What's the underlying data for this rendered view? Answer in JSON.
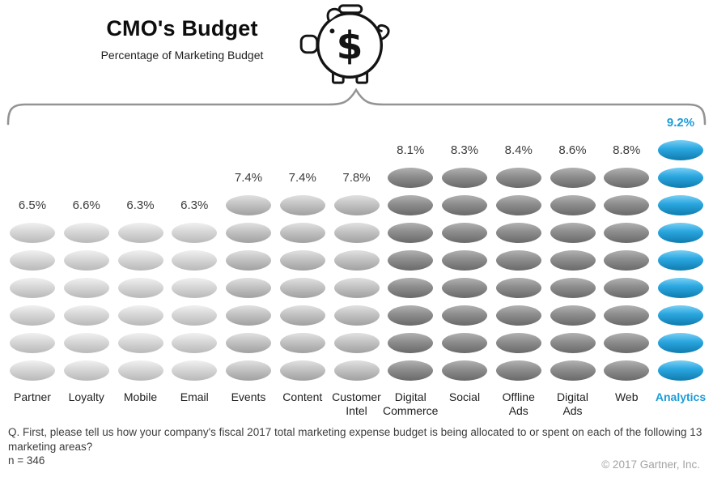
{
  "header": {
    "title": "CMO's Budget",
    "subtitle": "Percentage of Marketing Budget",
    "pig_dollar": "$"
  },
  "chart_data": {
    "type": "bar",
    "title": "CMO's Budget",
    "subtitle": "Percentage of Marketing Budget",
    "ylabel": "Percentage of Marketing Budget",
    "categories": [
      "Partner",
      "Loyalty",
      "Mobile",
      "Email",
      "Events",
      "Content",
      "Customer Intel",
      "Digital Commerce",
      "Social",
      "Offline Ads",
      "Digital Ads",
      "Web",
      "Analytics"
    ],
    "category_labels": [
      "Partner",
      "Loyalty",
      "Mobile",
      "Email",
      "Events",
      "Content",
      "Customer\nIntel",
      "Digital\nCommerce",
      "Social",
      "Offline\nAds",
      "Digital\nAds",
      "Web",
      "Analytics"
    ],
    "values": [
      6.5,
      6.6,
      6.3,
      6.3,
      7.4,
      7.4,
      7.8,
      8.1,
      8.3,
      8.4,
      8.6,
      8.8,
      9.2
    ],
    "value_labels": [
      "6.5%",
      "6.6%",
      "6.3%",
      "6.3%",
      "7.4%",
      "7.4%",
      "7.8%",
      "8.1%",
      "8.3%",
      "8.4%",
      "8.6%",
      "8.8%",
      "9.2%"
    ],
    "coin_counts": [
      6,
      6,
      6,
      6,
      7,
      7,
      7,
      8,
      8,
      8,
      8,
      8,
      9
    ],
    "color_groups": [
      "light",
      "light",
      "light",
      "light",
      "medium",
      "medium",
      "medium",
      "dark",
      "dark",
      "dark",
      "dark",
      "dark",
      "blue"
    ],
    "palette": {
      "light": {
        "hi": "#ededed",
        "face": "#d8d8d8",
        "side": "#bcbcbc",
        "text": "#3c3c3c"
      },
      "medium": {
        "hi": "#dddddd",
        "face": "#c4c4c4",
        "side": "#a4a4a4",
        "text": "#3c3c3c"
      },
      "dark": {
        "hi": "#adadad",
        "face": "#8f8f8f",
        "side": "#6d6d6d",
        "text": "#3c3c3c"
      },
      "blue": {
        "hi": "#6fcaf1",
        "face": "#2ba7e0",
        "side": "#1280b3",
        "text": "#1a9cd8"
      }
    },
    "highlight_category": "Analytics",
    "ylim": [
      0,
      10
    ],
    "grid": false,
    "legend": null
  },
  "footer": {
    "question": "Q. First, please tell us how your company's fiscal 2017 total marketing expense budget is being allocated to or spent on each of the following 13 marketing areas?",
    "sample_size": "n = 346",
    "copyright": "© 2017 Gartner, Inc."
  }
}
